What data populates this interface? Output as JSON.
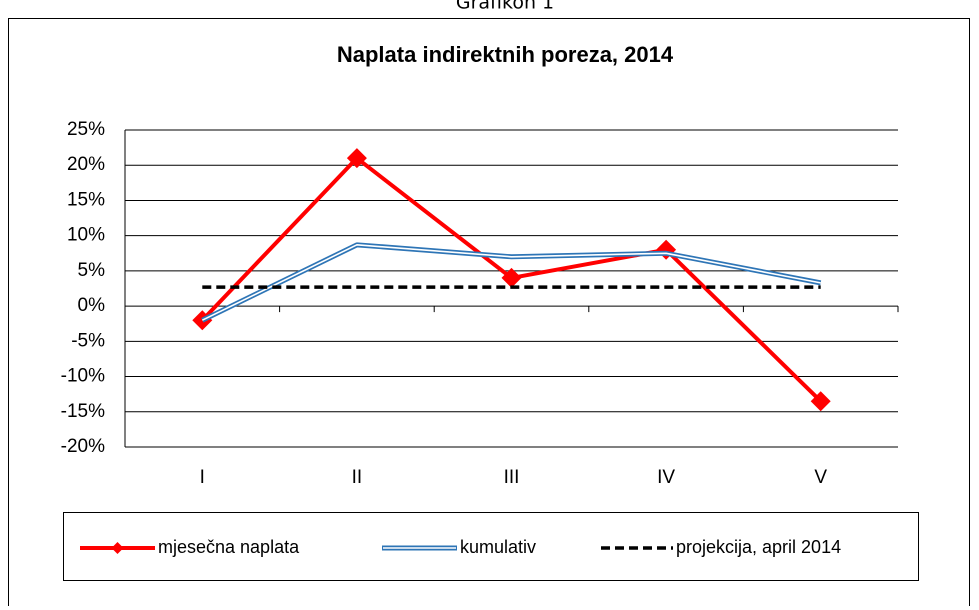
{
  "caption": "Grafikon 1",
  "chart_data": {
    "type": "line",
    "title": "Naplata indirektnih poreza,  2014",
    "categories": [
      "I",
      "II",
      "III",
      "IV",
      "V"
    ],
    "series": [
      {
        "name": "mjesečna naplata",
        "color": "#ff0000",
        "style": "marker-line",
        "values": [
          -2,
          21,
          4,
          8,
          -13.5
        ]
      },
      {
        "name": "kumulativ",
        "color": "#2e75b6",
        "style": "double",
        "values": [
          -2,
          8.7,
          7,
          7.5,
          3.3
        ]
      },
      {
        "name": "projekcija, april 2014",
        "color": "#000000",
        "style": "dashed",
        "values": [
          2.7,
          2.7,
          2.7,
          2.7,
          2.7
        ]
      }
    ],
    "ylim": [
      -20,
      25
    ],
    "yticks": [
      {
        "value": -20,
        "label": "-20%"
      },
      {
        "value": -15,
        "label": "-15%"
      },
      {
        "value": -10,
        "label": "-10%"
      },
      {
        "value": -5,
        "label": "-5%"
      },
      {
        "value": 0,
        "label": "0%"
      },
      {
        "value": 5,
        "label": "5%"
      },
      {
        "value": 10,
        "label": "10%"
      },
      {
        "value": 15,
        "label": "15%"
      },
      {
        "value": 20,
        "label": "20%"
      },
      {
        "value": 25,
        "label": "25%"
      }
    ],
    "grid": true,
    "legend": "bottom"
  }
}
